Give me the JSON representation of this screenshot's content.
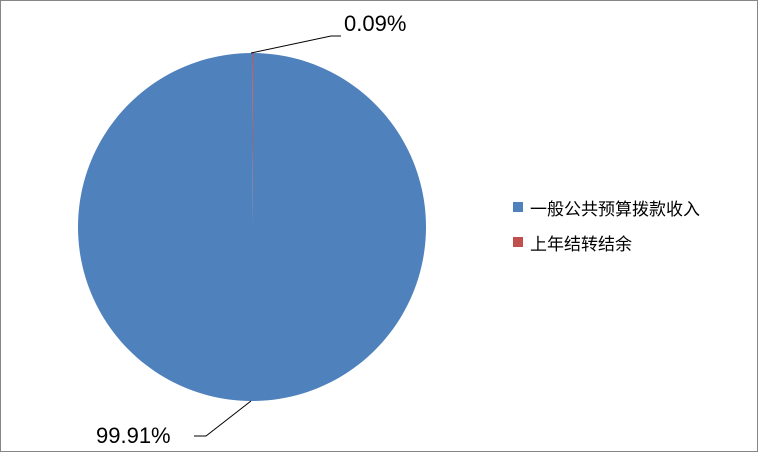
{
  "chart_data": {
    "type": "pie",
    "categories": [
      "一般公共预算拨款收入",
      "上年结转结余"
    ],
    "values": [
      99.91,
      0.09
    ],
    "data_labels": [
      "99.91%",
      "0.09%"
    ],
    "colors": [
      "#4F81BD",
      "#C0504D"
    ],
    "start_angle_deg": 0,
    "direction": "counterclockwise-from-top for first slice",
    "legend_position": "right"
  }
}
